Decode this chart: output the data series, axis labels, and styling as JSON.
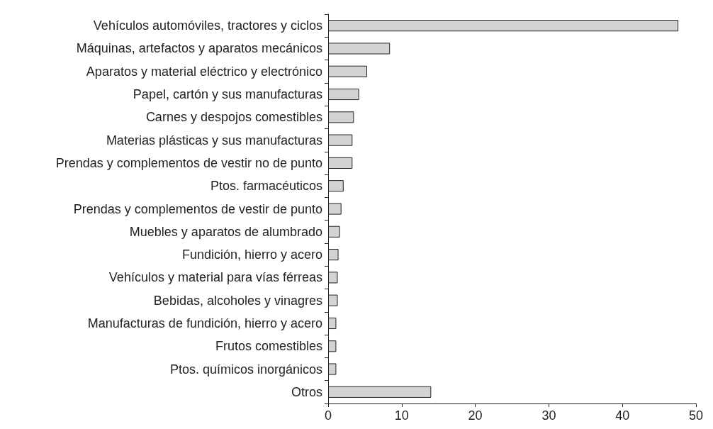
{
  "chart_data": {
    "type": "bar",
    "orientation": "horizontal",
    "categories": [
      "Vehículos automóviles, tractores y ciclos",
      "Máquinas, artefactos y aparatos mecánicos",
      "Aparatos y material eléctrico y electrónico",
      "Papel, cartón y sus manufacturas",
      "Carnes y despojos comestibles",
      "Materias plásticas y sus manufacturas",
      "Prendas y complementos de vestir no de punto",
      "Ptos. farmacéuticos",
      "Prendas y complementos de vestir de punto",
      "Muebles y aparatos de alumbrado",
      "Fundición, hierro y acero",
      "Vehículos y material para vías férreas",
      "Bebidas, alcoholes y vinagres",
      "Manufacturas de fundición, hierro y acero",
      "Frutos comestibles",
      "Ptos. químicos inorgánicos",
      "Otros"
    ],
    "values": [
      47.6,
      8.4,
      5.3,
      4.2,
      3.5,
      3.3,
      3.3,
      2.1,
      1.8,
      1.6,
      1.4,
      1.3,
      1.3,
      1.1,
      1.1,
      1.1,
      14.0
    ],
    "color": "#d3d3d3",
    "xlim": [
      0,
      50
    ],
    "xticks": [
      0,
      10,
      20,
      30,
      40,
      50
    ],
    "grid": false
  }
}
